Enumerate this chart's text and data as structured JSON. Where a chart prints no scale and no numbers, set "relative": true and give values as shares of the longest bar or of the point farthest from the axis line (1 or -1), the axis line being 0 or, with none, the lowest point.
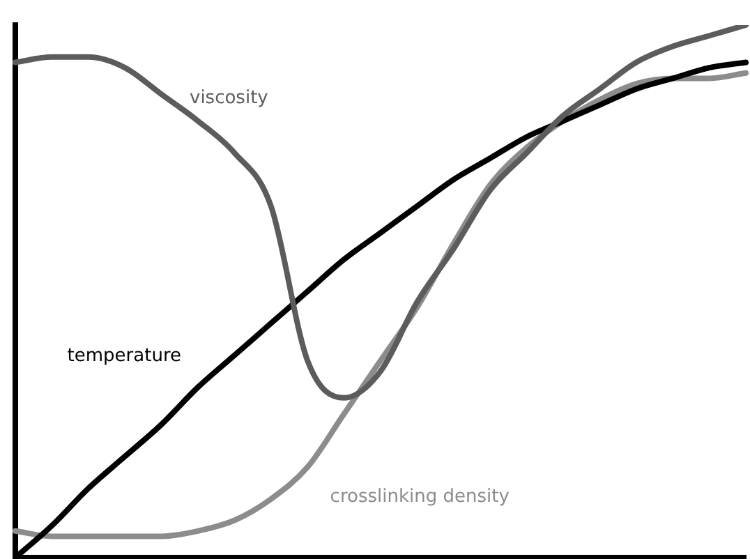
{
  "chart_data": {
    "type": "line",
    "relative": true,
    "marker": "none",
    "line_style": "solid",
    "grid": false,
    "legend": false,
    "categories": [
      null,
      null,
      null,
      null,
      null,
      null,
      null,
      null,
      null,
      null,
      null,
      null,
      null,
      null,
      null,
      null,
      null,
      null,
      null,
      null,
      null
    ],
    "series": [
      {
        "name": "viscosity",
        "color": "#5c5c5c",
        "values": [
          0.93,
          0.94,
          0.94,
          0.92,
          0.87,
          0.82,
          0.76,
          0.66,
          0.37,
          0.3,
          0.35,
          0.48,
          0.58,
          0.69,
          0.76,
          0.83,
          0.88,
          0.93,
          0.96,
          0.98,
          1
        ]
      },
      {
        "name": "temperature",
        "color": "#000000",
        "values": [
          0,
          0.06,
          0.13,
          0.19,
          0.25,
          0.32,
          0.38,
          0.44,
          0.5,
          0.56,
          0.61,
          0.66,
          0.71,
          0.75,
          0.79,
          0.82,
          0.85,
          0.88,
          0.9,
          0.92,
          0.93
        ]
      },
      {
        "name": "crosslinking density",
        "color": "#8c8c8c",
        "values": [
          0.05,
          0.04,
          0.04,
          0.04,
          0.04,
          0.05,
          0.07,
          0.11,
          0.17,
          0.27,
          0.37,
          0.47,
          0.59,
          0.7,
          0.77,
          0.82,
          0.86,
          0.89,
          0.9,
          0.9,
          0.91
        ]
      }
    ]
  }
}
